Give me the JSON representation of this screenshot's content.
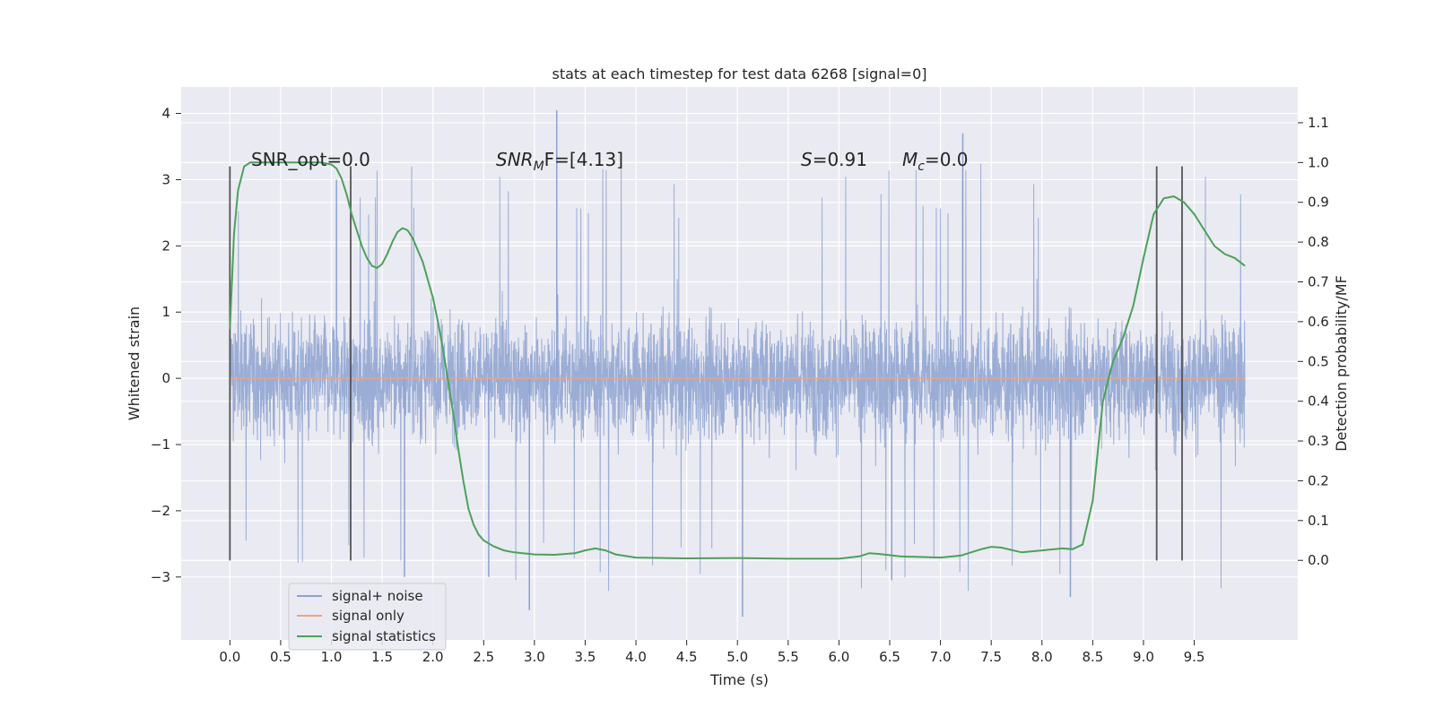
{
  "chart_data": {
    "type": "line",
    "title": "stats at each timestep for test data 6268 [signal=0]",
    "xlabel": "Time (s)",
    "ylabel": "Whitened strain",
    "y2label": "Detection probability/MF",
    "xlim": [
      -0.48,
      10.52
    ],
    "ylim": [
      -3.95,
      4.4
    ],
    "y2lim": [
      -0.2,
      1.19
    ],
    "x_ticks": [
      "0.0",
      "0.5",
      "1.0",
      "1.5",
      "2.0",
      "2.5",
      "3.0",
      "3.5",
      "4.0",
      "4.5",
      "5.0",
      "5.5",
      "6.0",
      "6.5",
      "7.0",
      "7.5",
      "8.0",
      "8.5",
      "9.0",
      "9.5"
    ],
    "y_ticks": [
      "4",
      "3",
      "2",
      "1",
      "0",
      "−1",
      "−2",
      "−3"
    ],
    "y2_ticks": [
      "1.1",
      "1.0",
      "0.9",
      "0.8",
      "0.7",
      "0.6",
      "0.5",
      "0.4",
      "0.3",
      "0.2",
      "0.1",
      "0.0"
    ],
    "grid": true,
    "legend_position": "lower-left",
    "annotations": {
      "snr_opt": "SNR_opt=0.0",
      "snr_mf_prefix": "SNR",
      "snr_mf_sub": "M",
      "snr_mf_suffix": "F=[4.13]",
      "s_symbol": "S",
      "s_value": "=0.91",
      "mc_symbol": "M",
      "mc_sub": "c",
      "mc_value": "=0.0"
    },
    "vertical_markers_x": [
      0.0,
      1.19,
      9.13,
      9.38
    ],
    "vertical_markers_yrange": [
      -2.75,
      3.2
    ],
    "noise_envelope": {
      "x_start": 0.0,
      "x_end": 10.0,
      "typical_min": -2.4,
      "typical_max": 2.3,
      "extreme_min": -3.6,
      "extreme_max": 4.05
    },
    "series": [
      {
        "name": "signal+ noise",
        "color": "#8da2d0",
        "kind": "noise",
        "x_start": 0.0,
        "x_end": 10.0
      },
      {
        "name": "signal only",
        "color": "#e8a585",
        "kind": "flat",
        "x": [
          0.0,
          10.0
        ],
        "y": [
          0.0,
          0.0
        ]
      },
      {
        "name": "signal statistics",
        "color": "#4ca15a",
        "kind": "line",
        "axis": "right",
        "x": [
          0.0,
          0.04,
          0.08,
          0.14,
          0.2,
          0.3,
          0.4,
          0.5,
          0.6,
          0.7,
          0.8,
          0.9,
          1.0,
          1.05,
          1.1,
          1.15,
          1.2,
          1.25,
          1.3,
          1.35,
          1.4,
          1.45,
          1.5,
          1.55,
          1.6,
          1.65,
          1.7,
          1.75,
          1.8,
          1.9,
          2.0,
          2.05,
          2.1,
          2.15,
          2.2,
          2.25,
          2.3,
          2.35,
          2.4,
          2.45,
          2.5,
          2.6,
          2.7,
          2.8,
          3.0,
          3.2,
          3.4,
          3.5,
          3.6,
          3.7,
          3.8,
          4.0,
          4.5,
          5.0,
          5.5,
          6.0,
          6.2,
          6.3,
          6.4,
          6.6,
          7.0,
          7.2,
          7.4,
          7.5,
          7.6,
          7.8,
          8.0,
          8.2,
          8.3,
          8.4,
          8.5,
          8.6,
          8.7,
          8.8,
          8.9,
          9.0,
          9.1,
          9.2,
          9.3,
          9.4,
          9.5,
          9.6,
          9.7,
          9.8,
          9.9,
          10.0
        ],
        "y": [
          0.58,
          0.82,
          0.93,
          0.99,
          1.0,
          1.0,
          1.0,
          1.0,
          1.0,
          1.0,
          1.0,
          1.0,
          0.995,
          0.985,
          0.96,
          0.92,
          0.87,
          0.83,
          0.79,
          0.76,
          0.74,
          0.735,
          0.745,
          0.77,
          0.8,
          0.825,
          0.835,
          0.83,
          0.81,
          0.75,
          0.66,
          0.6,
          0.53,
          0.45,
          0.37,
          0.28,
          0.2,
          0.13,
          0.09,
          0.065,
          0.05,
          0.035,
          0.025,
          0.02,
          0.015,
          0.014,
          0.018,
          0.025,
          0.03,
          0.025,
          0.015,
          0.007,
          0.005,
          0.006,
          0.004,
          0.004,
          0.01,
          0.018,
          0.016,
          0.01,
          0.007,
          0.012,
          0.028,
          0.034,
          0.032,
          0.02,
          0.025,
          0.03,
          0.028,
          0.04,
          0.15,
          0.4,
          0.5,
          0.56,
          0.64,
          0.76,
          0.87,
          0.91,
          0.915,
          0.9,
          0.87,
          0.83,
          0.79,
          0.77,
          0.76,
          0.74
        ]
      }
    ]
  }
}
